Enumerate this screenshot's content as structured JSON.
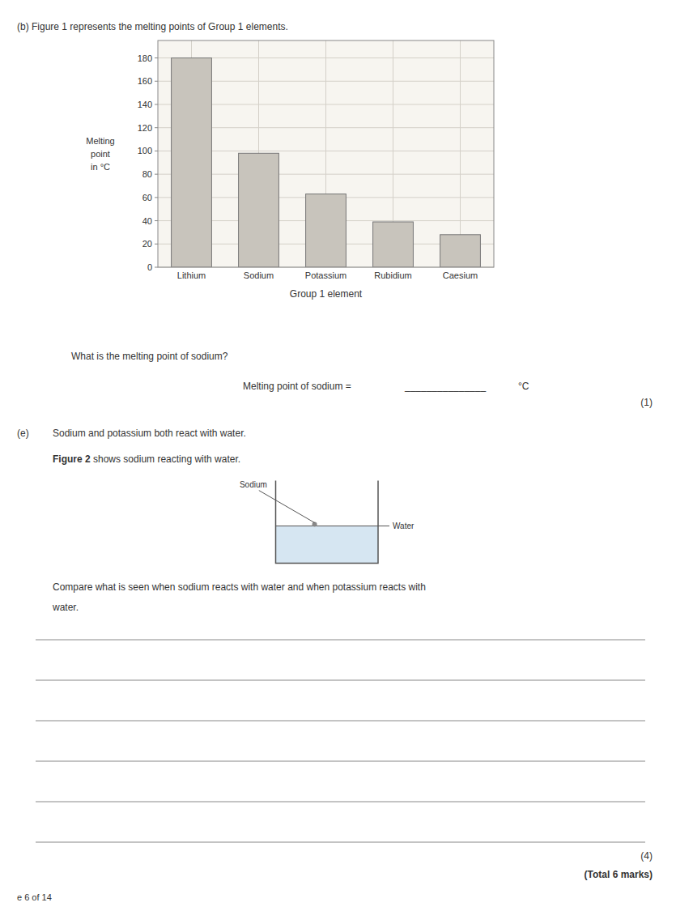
{
  "chart_data": {
    "type": "bar",
    "categories": [
      "Lithium",
      "Sodium",
      "Potassium",
      "Rubidium",
      "Caesium"
    ],
    "values": [
      180,
      98,
      63,
      39,
      28
    ],
    "color": "#c8c4bc",
    "xlabel": "Group 1 element",
    "ylabel": "Melting\npoint\nin °C",
    "ylim": [
      0,
      195
    ],
    "yticks": [
      0,
      20,
      40,
      60,
      80,
      100,
      120,
      140,
      160,
      180
    ],
    "grid": true
  },
  "page": {
    "title_b": "(b)   Figure 1 represents the melting points of Group 1 elements.",
    "question_b_text": "What is the melting point of sodium?",
    "sodium_answer_prefix": "Melting point of sodium = ",
    "sodium_answer_line": "_______________",
    "sodium_answer_suffix": "°C",
    "marks_1": "(1)",
    "part_e_header_a": "(e)",
    "part_e_header_b": "Sodium and potassium both react with water.",
    "figure2_label": "Figure 2",
    "figure2_text": " shows sodium reacting with water.",
    "sodium_label": "Sodium",
    "water_label": "Water",
    "compare_text_1": "Compare what is seen when sodium reacts with water and when potassium reacts with",
    "compare_text_2": "water.",
    "answer_lines": 6,
    "marks_4": "(4)",
    "total_marks": "(Total 6 marks)",
    "page_label": "e 6 of 14"
  }
}
